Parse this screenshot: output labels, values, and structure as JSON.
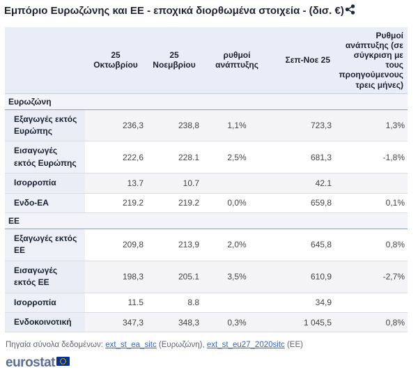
{
  "title": "Εμπόριο Ευρωζώνης και ΕΕ - εποχικά διορθωμένα στοιχεία - (δισ. €)",
  "table": {
    "columns": [
      "",
      "25 Οκτωβρίου",
      "25 Νοεμβρίου",
      "ρυθμοί ανάπτυξης",
      "Σεπ-Νοε 25",
      "Ρυθμοί ανάπτυξης (σε σύγκριση με τους προηγούμενους τρεις μήνες)"
    ],
    "sections": [
      {
        "name": "Ευρωζώνη",
        "rows": [
          {
            "label": "Εξαγωγές εκτός Ευρώπης",
            "values": [
              "236,3",
              "238,8",
              "1,1%",
              "723,3",
              "1,3%"
            ]
          },
          {
            "label": "Εισαγωγές εκτός Ευρώπης",
            "values": [
              "222,6",
              "228.1",
              "2,5%",
              "681,3",
              "-1,8%"
            ]
          },
          {
            "label": "Ισορροπία",
            "values": [
              "13.7",
              "10.7",
              "",
              "42.1",
              ""
            ]
          },
          {
            "label": "Ενδο-ΕΑ",
            "values": [
              "219.2",
              "219.2",
              "0,0%",
              "659,8",
              "0,1%"
            ]
          }
        ]
      },
      {
        "name": "ΕΕ",
        "rows": [
          {
            "label": "Εξαγωγές εκτός ΕΕ",
            "values": [
              "209,8",
              "213,9",
              "2,0%",
              "645,8",
              "0,8%"
            ]
          },
          {
            "label": "Εισαγωγές εκτός ΕΕ",
            "values": [
              "198,3",
              "205.1",
              "3,5%",
              "610,9",
              "-2,7%"
            ]
          },
          {
            "label": "Ισορροπία",
            "values": [
              "11.5",
              "8.8",
              "",
              "34,9",
              ""
            ]
          },
          {
            "label": "Ενδοκοινοτική",
            "values": [
              "347,3",
              "348,3",
              "0,3%",
              "1 045,5",
              "0,8%"
            ]
          }
        ]
      }
    ]
  },
  "footer": {
    "prefix": "Πηγαία σύνολα δεδομένων:",
    "link_ea": "ext_st_ea_sitc",
    "sep1": "(Ευρωζώνη),",
    "link_eu": "ext_st_eu27_2020sitc",
    "sep2": "(ΕΕ)"
  },
  "logo": {
    "text": "eurostat"
  },
  "colors": {
    "header_bg": "#e8edf8",
    "label_bg": "#eef0f8",
    "stripe_bg": "#f4f4f6",
    "section_bg": "#f2f4fa",
    "section_border": "#94a0aa",
    "row_border": "#d9dce2",
    "title_text": "#1c2433",
    "link": "#3366cc",
    "logo_text": "#5a6e96",
    "flag_bg": "#003399",
    "flag_stars": "#ffcc00"
  }
}
